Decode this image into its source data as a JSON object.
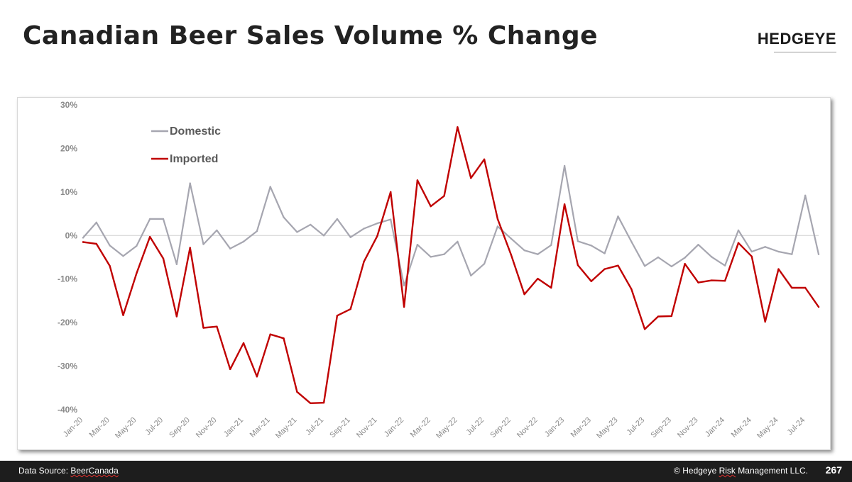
{
  "title": "Canadian Beer Sales Volume % Change",
  "brand": "HEDGEYE",
  "footer": {
    "source_prefix": "Data Source: ",
    "source_name": "BeerCanada",
    "copyright_prefix": "© Hedgeye ",
    "copyright_risk": "Risk",
    "copyright_suffix": " Management LLC.",
    "page_number": "267"
  },
  "chart_data": {
    "type": "line",
    "ylim": [
      -40,
      30
    ],
    "yticks": [
      30,
      20,
      10,
      0,
      -10,
      -20,
      -30,
      -40
    ],
    "ytick_labels": [
      "30%",
      "20%",
      "10%",
      "0%",
      "-10%",
      "-20%",
      "-30%",
      "-40%"
    ],
    "x": [
      "Jan-20",
      "Feb-20",
      "Mar-20",
      "Apr-20",
      "May-20",
      "Jun-20",
      "Jul-20",
      "Aug-20",
      "Sep-20",
      "Oct-20",
      "Nov-20",
      "Dec-20",
      "Jan-21",
      "Feb-21",
      "Mar-21",
      "Apr-21",
      "May-21",
      "Jun-21",
      "Jul-21",
      "Aug-21",
      "Sep-21",
      "Oct-21",
      "Nov-21",
      "Dec-21",
      "Jan-22",
      "Feb-22",
      "Mar-22",
      "Apr-22",
      "May-22",
      "Jun-22",
      "Jul-22",
      "Aug-22",
      "Sep-22",
      "Oct-22",
      "Nov-22",
      "Dec-22",
      "Jan-23",
      "Feb-23",
      "Mar-23",
      "Apr-23",
      "May-23",
      "Jun-23",
      "Jul-23",
      "Aug-23",
      "Sep-23",
      "Oct-23",
      "Nov-23",
      "Dec-23",
      "Jan-24",
      "Feb-24",
      "Mar-24",
      "Apr-24",
      "May-24",
      "Jun-24",
      "Jul-24",
      "Aug-24"
    ],
    "xtick_labels": [
      "Jan-20",
      "Mar-20",
      "May-20",
      "Jul-20",
      "Sep-20",
      "Nov-20",
      "Jan-21",
      "Mar-21",
      "May-21",
      "Jul-21",
      "Sep-21",
      "Nov-21",
      "Jan-22",
      "Mar-22",
      "May-22",
      "Jul-22",
      "Sep-22",
      "Nov-22",
      "Jan-23",
      "Mar-23",
      "May-23",
      "Jul-23",
      "Sep-23",
      "Nov-23",
      "Jan-24",
      "Mar-24",
      "May-24",
      "Jul-24"
    ],
    "legend_position": "top-left",
    "series": [
      {
        "name": "Domestic",
        "color": "#a6a6b0",
        "values": [
          -0.5,
          3,
          -2.3,
          -4.7,
          -2.4,
          3.8,
          3.8,
          -6.6,
          12,
          -2,
          1.2,
          -3,
          -1.4,
          1,
          11.2,
          4.2,
          0.8,
          2.5,
          0,
          3.8,
          -0.4,
          1.6,
          2.8,
          3.7,
          -11.5,
          -2.1,
          -4.9,
          -4.3,
          -1.4,
          -9.2,
          -6.5,
          2.1,
          -0.7,
          -3.4,
          -4.3,
          -2.2,
          16,
          -1.3,
          -2.3,
          -4.1,
          4.4,
          -1.4,
          -7,
          -5,
          -7.1,
          -5.1,
          -2.1,
          -4.9,
          -6.9,
          1.2,
          -3.7,
          -2.6,
          -3.7,
          -4.3,
          9.2,
          -4.3
        ]
      },
      {
        "name": "Imported",
        "color": "#c00000",
        "values": [
          -1.5,
          -1.9,
          -7,
          -18.3,
          -8.7,
          -0.3,
          -5.3,
          -18.6,
          -2.8,
          -21.2,
          -20.9,
          -30.7,
          -24.7,
          -32.4,
          -22.7,
          -23.6,
          -35.9,
          -38.5,
          -38.4,
          -18.4,
          -16.9,
          -6,
          -0.1,
          10,
          -16.4,
          12.7,
          6.7,
          9.1,
          24.9,
          13.2,
          17.5,
          3.8,
          -4.4,
          -13.5,
          -9.9,
          -12,
          7.2,
          -6.8,
          -10.5,
          -7.7,
          -6.9,
          -12.3,
          -21.5,
          -18.6,
          -18.5,
          -6.5,
          -10.8,
          -10.3,
          -10.4,
          -1.7,
          -4.8,
          -19.8,
          -7.7,
          -12,
          -12,
          -16.4
        ]
      }
    ]
  }
}
